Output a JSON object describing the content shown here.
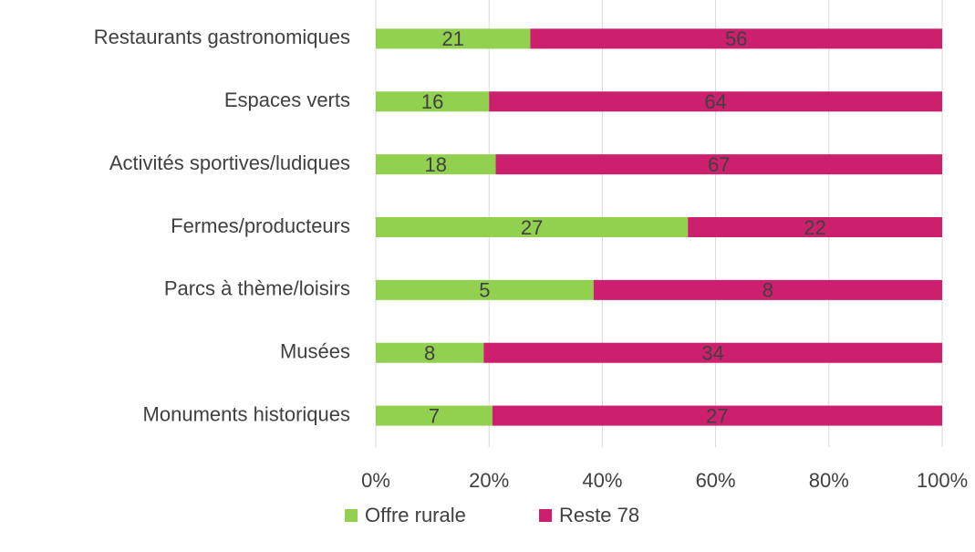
{
  "chart_data": {
    "type": "bar",
    "orientation": "horizontal",
    "stacking": "percent",
    "categories": [
      "Restaurants gastronomiques",
      "Espaces verts",
      "Activités sportives/ludiques",
      "Fermes/producteurs",
      "Parcs à thème/loisirs",
      "Musées",
      "Monuments historiques"
    ],
    "series": [
      {
        "name": "Offre rurale",
        "color": "#92d050",
        "values": [
          21,
          16,
          18,
          27,
          5,
          8,
          7
        ]
      },
      {
        "name": "Reste 78",
        "color": "#cc1f6e",
        "values": [
          56,
          64,
          67,
          22,
          8,
          34,
          27
        ]
      }
    ],
    "xlim": [
      0,
      100
    ],
    "xticks": [
      {
        "value": 0,
        "label": "0%"
      },
      {
        "value": 20,
        "label": "20%"
      },
      {
        "value": 40,
        "label": "40%"
      },
      {
        "value": 60,
        "label": "60%"
      },
      {
        "value": 80,
        "label": "80%"
      },
      {
        "value": 100,
        "label": "100%"
      }
    ],
    "grid": true,
    "legend": "bottom"
  }
}
